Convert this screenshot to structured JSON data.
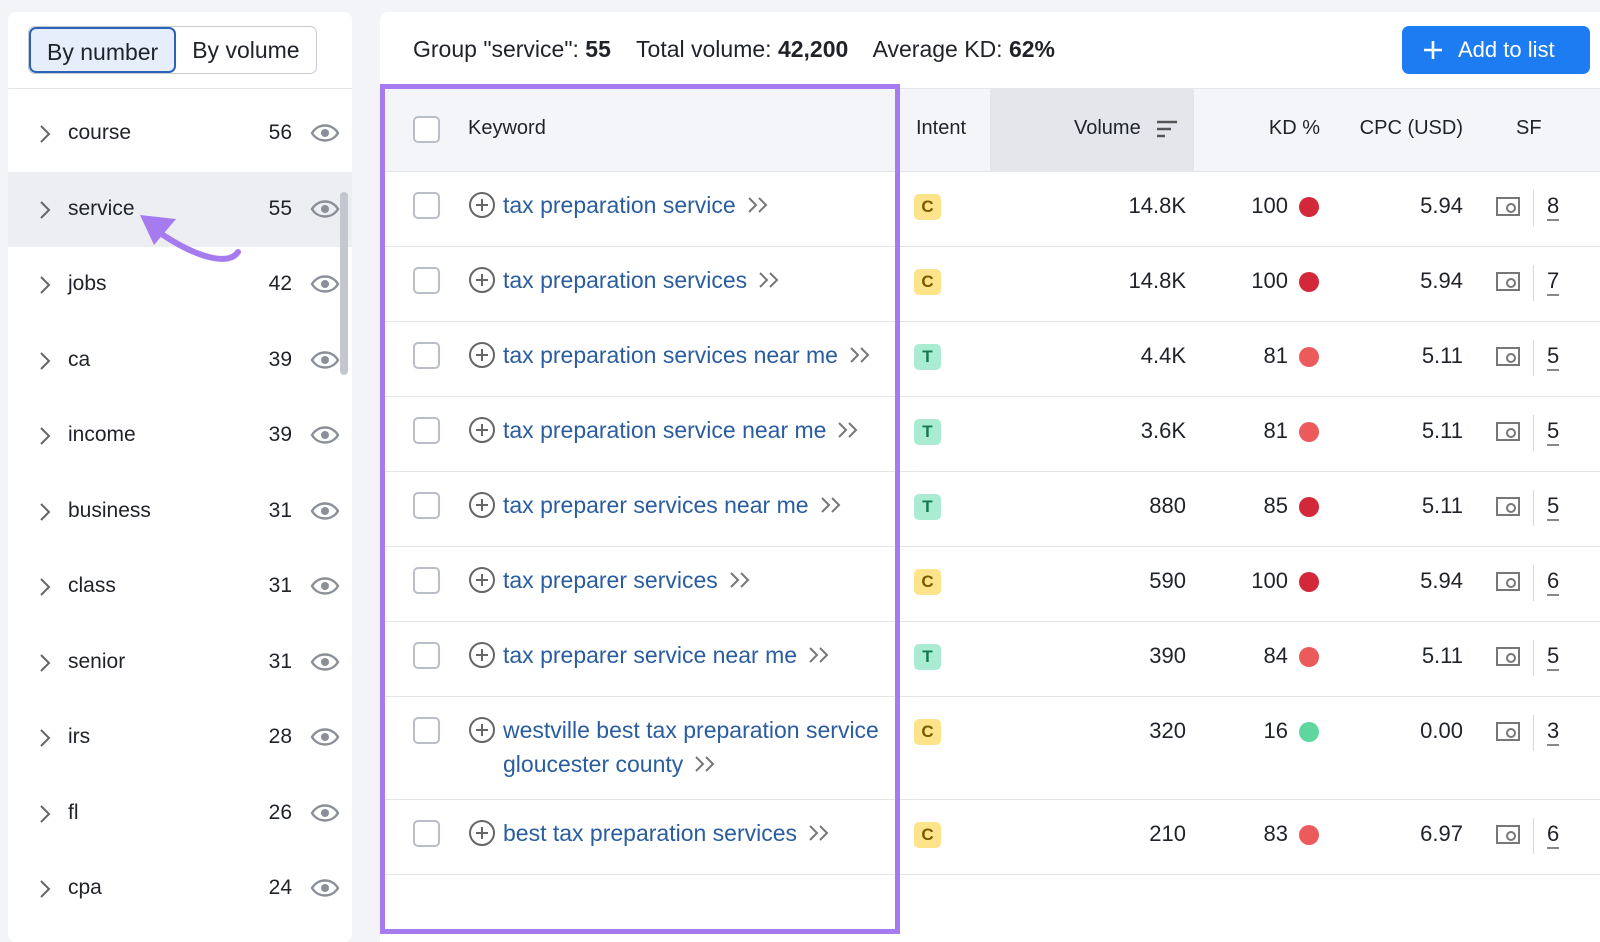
{
  "toggle": [
    "By number",
    "By volume"
  ],
  "groups": [
    {
      "name": "course",
      "count": 56
    },
    {
      "name": "service",
      "count": 55
    },
    {
      "name": "jobs",
      "count": 42
    },
    {
      "name": "ca",
      "count": 39
    },
    {
      "name": "income",
      "count": 39
    },
    {
      "name": "business",
      "count": 31
    },
    {
      "name": "class",
      "count": 31
    },
    {
      "name": "senior",
      "count": 31
    },
    {
      "name": "irs",
      "count": 28
    },
    {
      "name": "fl",
      "count": 26
    },
    {
      "name": "cpa",
      "count": 24
    }
  ],
  "summary": {
    "group_label": "Group \"service\":",
    "group_count": 55,
    "volume_label": "Total volume:",
    "volume": "42,200",
    "kd_label": "Average KD:",
    "kd": "62%"
  },
  "button": "Add to list",
  "headers": {
    "keyword": "Keyword",
    "intent": "Intent",
    "volume": "Volume",
    "kd": "KD %",
    "cpc": "CPC (USD)",
    "sf": "SF"
  },
  "rows": [
    {
      "keyword": "tax preparation service",
      "intent": "C",
      "volume": "14.8K",
      "kd": 100,
      "cpc": "5.94",
      "sf": 8
    },
    {
      "keyword": "tax preparation services",
      "intent": "C",
      "volume": "14.8K",
      "kd": 100,
      "cpc": "5.94",
      "sf": 7
    },
    {
      "keyword": "tax preparation services near me",
      "intent": "T",
      "volume": "4.4K",
      "kd": 81,
      "cpc": "5.11",
      "sf": 5
    },
    {
      "keyword": "tax preparation service near me",
      "intent": "T",
      "volume": "3.6K",
      "kd": 81,
      "cpc": "5.11",
      "sf": 5
    },
    {
      "keyword": "tax preparer services near me",
      "intent": "T",
      "volume": "880",
      "kd": 85,
      "cpc": "5.11",
      "sf": 5
    },
    {
      "keyword": "tax preparer services",
      "intent": "C",
      "volume": "590",
      "kd": 100,
      "cpc": "5.94",
      "sf": 6
    },
    {
      "keyword": "tax preparer service near me",
      "intent": "T",
      "volume": "390",
      "kd": 84,
      "cpc": "5.11",
      "sf": 5
    },
    {
      "keyword": "westville best tax preparation service gloucester county",
      "intent": "C",
      "volume": "320",
      "kd": 16,
      "cpc": "0.00",
      "sf": 3
    },
    {
      "keyword": "best tax preparation services",
      "intent": "C",
      "volume": "210",
      "kd": 83,
      "cpc": "6.97",
      "sf": 6
    }
  ]
}
